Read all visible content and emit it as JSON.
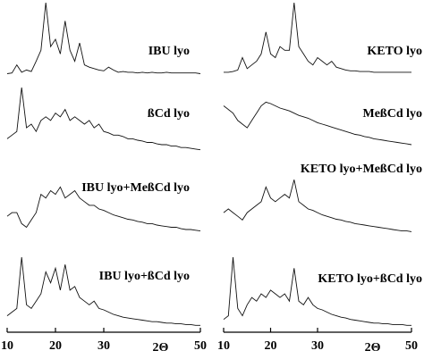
{
  "chart_data": {
    "type": "line",
    "xlabel": "2Θ",
    "x": [
      10,
      11,
      12,
      13,
      14,
      15,
      16,
      17,
      18,
      19,
      20,
      21,
      22,
      23,
      24,
      25,
      26,
      27,
      28,
      29,
      30,
      31,
      32,
      33,
      34,
      35,
      36,
      37,
      38,
      39,
      40,
      41,
      42,
      43,
      44,
      45,
      46,
      47,
      48,
      49,
      50
    ],
    "xlim": [
      10,
      50
    ],
    "xticks": [
      10,
      20,
      30,
      50
    ],
    "ylim": [
      0,
      100
    ],
    "series": [
      {
        "name": "IBU lyo",
        "color": "#111111",
        "values": [
          3,
          4,
          15,
          5,
          8,
          6,
          20,
          35,
          100,
          40,
          50,
          30,
          75,
          35,
          20,
          45,
          15,
          12,
          10,
          8,
          7,
          12,
          8,
          5,
          6,
          5,
          5,
          4,
          5,
          4,
          5,
          4,
          4,
          5,
          4,
          4,
          4,
          4,
          4,
          4,
          3
        ]
      },
      {
        "name": "ßCd lyo",
        "color": "#111111",
        "values": [
          30,
          35,
          40,
          100,
          45,
          50,
          40,
          55,
          60,
          55,
          65,
          60,
          70,
          55,
          60,
          55,
          50,
          55,
          45,
          50,
          40,
          38,
          35,
          35,
          33,
          30,
          30,
          28,
          27,
          25,
          25,
          23,
          22,
          22,
          20,
          20,
          18,
          18,
          17,
          16,
          15
        ]
      },
      {
        "name": "IBU lyo+MeßCd lyo",
        "color": "#111111",
        "values": [
          40,
          45,
          45,
          30,
          25,
          35,
          45,
          70,
          65,
          75,
          70,
          80,
          65,
          70,
          75,
          65,
          60,
          55,
          55,
          50,
          48,
          45,
          42,
          40,
          38,
          36,
          35,
          33,
          32,
          30,
          30,
          28,
          27,
          26,
          25,
          25,
          23,
          22,
          22,
          21,
          20
        ]
      },
      {
        "name": "IBU lyo+ßCd lyo",
        "color": "#111111",
        "values": [
          20,
          25,
          30,
          100,
          35,
          30,
          40,
          50,
          80,
          65,
          85,
          55,
          90,
          55,
          60,
          45,
          40,
          35,
          40,
          30,
          28,
          25,
          22,
          20,
          18,
          17,
          16,
          15,
          14,
          13,
          12,
          12,
          11,
          10,
          10,
          9,
          9,
          8,
          8,
          7,
          7
        ]
      },
      {
        "name": "KETO lyo",
        "color": "#111111",
        "values": [
          5,
          5,
          6,
          8,
          25,
          10,
          15,
          20,
          30,
          60,
          30,
          25,
          40,
          35,
          35,
          100,
          40,
          30,
          20,
          15,
          25,
          20,
          15,
          20,
          12,
          10,
          8,
          7,
          7,
          6,
          6,
          6,
          5,
          5,
          5,
          5,
          5,
          5,
          5,
          5,
          5
        ]
      },
      {
        "name": "MeßCd lyo",
        "color": "#111111",
        "values": [
          75,
          70,
          65,
          55,
          50,
          45,
          55,
          65,
          75,
          80,
          78,
          75,
          72,
          70,
          68,
          65,
          62,
          60,
          58,
          55,
          52,
          50,
          48,
          46,
          44,
          42,
          40,
          38,
          36,
          35,
          33,
          32,
          30,
          29,
          28,
          27,
          26,
          25,
          24,
          23,
          22
        ]
      },
      {
        "name": "KETO lyo+MeßCd lyo",
        "color": "#111111",
        "values": [
          45,
          50,
          45,
          40,
          35,
          45,
          50,
          55,
          60,
          80,
          65,
          60,
          65,
          70,
          65,
          90,
          60,
          55,
          50,
          48,
          45,
          42,
          40,
          38,
          36,
          35,
          33,
          32,
          30,
          29,
          28,
          27,
          26,
          25,
          24,
          23,
          22,
          21,
          20,
          20,
          19
        ]
      },
      {
        "name": "KETO lyo+ßCd lyo",
        "color": "#111111",
        "values": [
          15,
          20,
          100,
          30,
          20,
          35,
          45,
          40,
          50,
          45,
          55,
          50,
          45,
          50,
          40,
          85,
          40,
          35,
          45,
          35,
          30,
          28,
          25,
          22,
          20,
          18,
          17,
          15,
          14,
          13,
          12,
          11,
          10,
          10,
          9,
          9,
          8,
          8,
          8,
          7,
          7
        ]
      }
    ]
  }
}
